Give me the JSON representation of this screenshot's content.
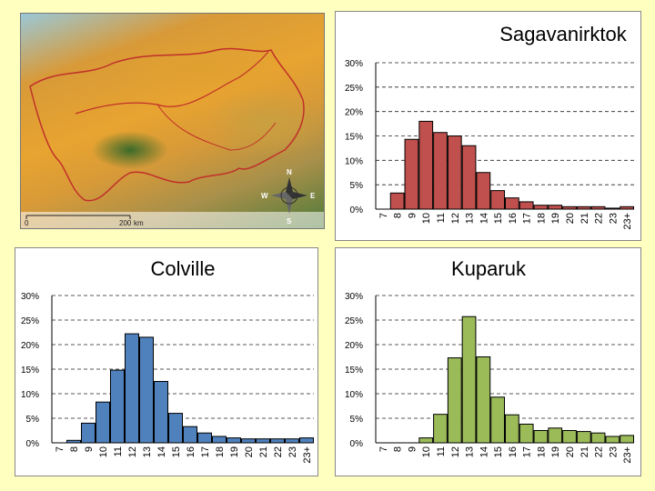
{
  "map": {
    "scale_labels": [
      "0",
      "200",
      "km"
    ],
    "compass": {
      "n": "N",
      "s": "S",
      "e": "E",
      "w": "W"
    }
  },
  "chart_data": [
    {
      "type": "bar",
      "title": "Sagavanirktok",
      "categories": [
        "7",
        "8",
        "9",
        "10",
        "11",
        "12",
        "13",
        "14",
        "15",
        "16",
        "17",
        "18",
        "19",
        "20",
        "21",
        "22",
        "23",
        "23+"
      ],
      "values": [
        0,
        3.3,
        14.3,
        18.0,
        15.7,
        15.0,
        13.0,
        7.5,
        3.8,
        2.3,
        1.5,
        0.8,
        0.8,
        0.5,
        0.5,
        0.5,
        0.2,
        0.5
      ],
      "yticks": [
        "0%",
        "5%",
        "10%",
        "15%",
        "20%",
        "25%",
        "30%"
      ],
      "ylim": [
        0,
        30
      ],
      "color": "#c0504d"
    },
    {
      "type": "bar",
      "title": "Colville",
      "categories": [
        "7",
        "8",
        "9",
        "10",
        "11",
        "12",
        "13",
        "14",
        "15",
        "16",
        "17",
        "18",
        "19",
        "20",
        "21",
        "22",
        "23",
        "23+"
      ],
      "values": [
        0,
        0.5,
        4.0,
        8.3,
        14.8,
        22.2,
        21.5,
        12.5,
        6.0,
        3.3,
        2.0,
        1.3,
        1.0,
        0.8,
        0.8,
        0.8,
        0.8,
        1.0
      ],
      "yticks": [
        "0%",
        "5%",
        "10%",
        "15%",
        "20%",
        "25%",
        "30%"
      ],
      "ylim": [
        0,
        30
      ],
      "color": "#4f81bd"
    },
    {
      "type": "bar",
      "title": "Kuparuk",
      "categories": [
        "7",
        "8",
        "9",
        "10",
        "11",
        "12",
        "13",
        "14",
        "15",
        "16",
        "17",
        "18",
        "19",
        "20",
        "21",
        "22",
        "23",
        "23+"
      ],
      "values": [
        0,
        0,
        0,
        1.0,
        5.8,
        17.3,
        25.7,
        17.5,
        9.3,
        5.7,
        3.8,
        2.5,
        3.0,
        2.5,
        2.3,
        2.0,
        1.3,
        1.5
      ],
      "yticks": [
        "0%",
        "5%",
        "10%",
        "15%",
        "20%",
        "25%",
        "30%"
      ],
      "ylim": [
        0,
        30
      ],
      "color": "#9bbb59"
    }
  ]
}
